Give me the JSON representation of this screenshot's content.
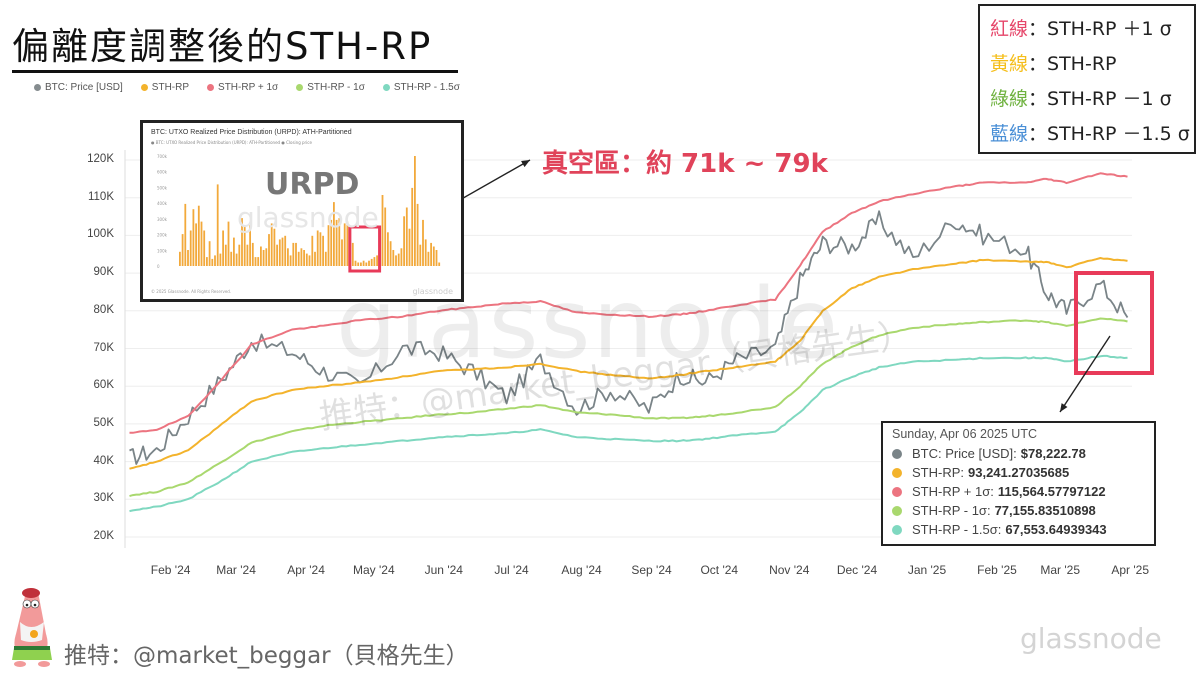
{
  "header": {
    "title": "偏離度調整後的STH-RP"
  },
  "legend": [
    {
      "label": "BTC: Price [USD]",
      "color": "#858c8f"
    },
    {
      "label": "STH-RP",
      "color": "#f3b32c"
    },
    {
      "label": "STH-RP + 1σ",
      "color": "#ec7480"
    },
    {
      "label": "STH-RP - 1σ",
      "color": "#a9d86e"
    },
    {
      "label": "STH-RP - 1.5σ",
      "color": "#7fd8c0"
    }
  ],
  "keybox": [
    {
      "cn": "紅線",
      "desc": "：STH-RP ＋1 σ",
      "color": "#e6466a"
    },
    {
      "cn": "黃線",
      "desc": "：STH-RP",
      "color": "#f5bf1d"
    },
    {
      "cn": "綠線",
      "desc": "：STH-RP －1 σ",
      "color": "#6fb23f"
    },
    {
      "cn": "藍線",
      "desc": "：STH-RP －1.5 σ",
      "color": "#4a8fd6"
    }
  ],
  "inset": {
    "title": "BTC: UTXO Realized Price Distribution (URPD): ATH-Partitioned",
    "legend_text": "● BTC: UTXO Realized Price Distribution (URPD): ATH-Partitioned   ● Closing price",
    "label": "URPD",
    "watermark": "glassnode",
    "copyright": "© 2025 Glassnode. All Rights Reserved.",
    "brand": "glassnode",
    "bars": [
      8,
      18,
      35,
      9,
      20,
      32,
      24,
      34,
      25,
      20,
      5,
      14,
      4,
      6,
      46,
      7,
      20,
      12,
      25,
      8,
      16,
      7,
      12,
      27,
      23,
      12,
      23,
      13,
      5,
      5,
      11,
      9,
      10,
      18,
      24,
      21,
      12,
      15,
      16,
      17,
      10,
      6,
      13,
      13,
      8,
      10,
      9,
      7,
      6,
      17,
      8,
      20,
      19,
      17,
      8,
      23,
      26,
      36,
      26,
      27,
      15,
      24,
      25,
      20,
      13,
      3,
      2,
      2,
      3,
      2,
      3,
      4,
      5,
      6,
      18,
      40,
      33,
      19,
      14,
      9,
      6,
      7,
      10,
      28,
      33,
      21,
      44,
      62,
      35,
      12,
      26,
      15,
      8,
      13,
      11,
      9,
      2
    ],
    "highlight_range": [
      64,
      75
    ]
  },
  "annotation": {
    "text": "真空區：約 71k ~ 79k"
  },
  "watermarks": {
    "big": "glassnode",
    "handle": "推特：@market_beggar（貝格先生）"
  },
  "tooltip": {
    "date": "Sunday, Apr 06 2025 UTC",
    "rows": [
      {
        "label": "BTC: Price [USD]:",
        "value": "$78,222.78",
        "color": "#7a8488"
      },
      {
        "label": "STH-RP:",
        "value": "93,241.27035685",
        "color": "#f3b32c"
      },
      {
        "label": "STH-RP + 1σ:",
        "value": "115,564.57797122",
        "color": "#ec7480"
      },
      {
        "label": "STH-RP - 1σ:",
        "value": "77,155.83510898",
        "color": "#a9d86e"
      },
      {
        "label": "STH-RP - 1.5σ:",
        "value": "67,553.64939343",
        "color": "#7fd8c0"
      }
    ]
  },
  "footer": {
    "credit": "推特：@market_beggar（貝格先生）",
    "brand": "glassnode"
  },
  "chart_data": {
    "type": "line",
    "title": "偏離度調整後的STH-RP",
    "xlabel": "",
    "ylabel": "",
    "ylim": [
      20000,
      120000
    ],
    "yticks": [
      "20K",
      "30K",
      "40K",
      "50K",
      "60K",
      "70K",
      "80K",
      "90K",
      "100K",
      "110K",
      "120K"
    ],
    "xticks": [
      "Feb '24",
      "Mar '24",
      "Apr '24",
      "May '24",
      "Jun '24",
      "Jul '24",
      "Aug '24",
      "Sep '24",
      "Oct '24",
      "Nov '24",
      "Dec '24",
      "Jan '25",
      "Feb '25",
      "Mar '25",
      "Apr '25"
    ],
    "grid": true,
    "legend_position": "top-left",
    "x": [
      "2024-01-20",
      "2024-02-01",
      "2024-02-15",
      "2024-03-01",
      "2024-03-14",
      "2024-04-01",
      "2024-04-15",
      "2024-05-01",
      "2024-05-20",
      "2024-06-05",
      "2024-06-20",
      "2024-07-05",
      "2024-07-20",
      "2024-08-05",
      "2024-08-20",
      "2024-09-06",
      "2024-09-20",
      "2024-10-01",
      "2024-10-15",
      "2024-11-01",
      "2024-11-12",
      "2024-11-22",
      "2024-12-05",
      "2024-12-17",
      "2025-01-01",
      "2025-01-20",
      "2025-02-01",
      "2025-02-20",
      "2025-03-01",
      "2025-03-10",
      "2025-03-25",
      "2025-04-06"
    ],
    "series": [
      {
        "name": "BTC: Price [USD]",
        "color": "#7a8488",
        "values": [
          41000,
          43000,
          52000,
          62000,
          72000,
          69000,
          64000,
          60000,
          70000,
          69000,
          64000,
          57000,
          67000,
          54000,
          59000,
          54000,
          63000,
          61000,
          67000,
          70000,
          88000,
          98000,
          97000,
          104000,
          94000,
          104000,
          100000,
          96000,
          85000,
          80000,
          87000,
          78222
        ]
      },
      {
        "name": "STH-RP",
        "color": "#f3b32c",
        "values": [
          38000,
          40000,
          43000,
          50000,
          56000,
          59000,
          60000,
          61000,
          62500,
          64000,
          64500,
          65000,
          66000,
          64000,
          63000,
          62000,
          63000,
          64000,
          65000,
          66500,
          72000,
          80000,
          86000,
          89000,
          91000,
          92500,
          93500,
          93000,
          93000,
          91500,
          94000,
          93241
        ]
      },
      {
        "name": "STH-RP + 1σ",
        "color": "#ec7480",
        "values": [
          47500,
          48500,
          52000,
          62000,
          71000,
          75000,
          76000,
          77500,
          78500,
          80000,
          81000,
          82000,
          82500,
          79500,
          79000,
          78500,
          79000,
          80000,
          81500,
          83000,
          92000,
          101000,
          106000,
          109000,
          111000,
          113000,
          114000,
          114000,
          115000,
          114000,
          116500,
          115564
        ]
      },
      {
        "name": "STH-RP - 1σ",
        "color": "#a9d86e",
        "values": [
          31000,
          32000,
          34500,
          40000,
          45000,
          48000,
          49500,
          50500,
          51500,
          52500,
          53000,
          54000,
          55000,
          53000,
          52500,
          51500,
          51500,
          52000,
          53000,
          54500,
          60000,
          66000,
          70500,
          73500,
          75500,
          76500,
          77000,
          77500,
          77000,
          76000,
          78000,
          77155
        ]
      },
      {
        "name": "STH-RP - 1.5σ",
        "color": "#7fd8c0",
        "values": [
          27000,
          28000,
          30000,
          35000,
          40000,
          42500,
          43500,
          44500,
          45500,
          46500,
          47000,
          47500,
          48500,
          46500,
          46000,
          45500,
          45500,
          46000,
          47000,
          48000,
          53000,
          59000,
          62500,
          65000,
          66500,
          67000,
          67500,
          67500,
          67500,
          66500,
          68000,
          67553
        ]
      }
    ],
    "annotations": [
      {
        "text": "真空區：約 71k ~ 79k",
        "type": "callout"
      },
      {
        "text": "URPD",
        "type": "inset"
      }
    ]
  }
}
